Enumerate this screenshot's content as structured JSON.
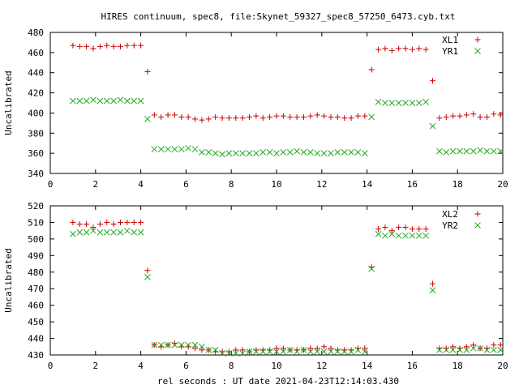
{
  "figure": {
    "title": "HIRES continuum, spec8, file:Skynet_59327_spec8_57250_6473.cyb.txt",
    "xlabel": "rel seconds : UT date 2021-04-23T12:14:03.430"
  },
  "chart_data": [
    {
      "type": "scatter",
      "ylabel": "Uncalibrated",
      "xlim": [
        0,
        20
      ],
      "ylim": [
        340,
        480
      ],
      "xticks": [
        "0",
        "2",
        "4",
        "6",
        "8",
        "10",
        "12",
        "14",
        "16",
        "18",
        "20"
      ],
      "yticks": [
        "340",
        "360",
        "380",
        "400",
        "420",
        "440",
        "460",
        "480"
      ],
      "legend_position": "top-right",
      "grid": false,
      "series": [
        {
          "name": "XL1",
          "marker": "plus",
          "color": "#cc0000",
          "points": [
            [
              1.0,
              467
            ],
            [
              1.3,
              466
            ],
            [
              1.6,
              466
            ],
            [
              1.9,
              464
            ],
            [
              2.2,
              466
            ],
            [
              2.5,
              467
            ],
            [
              2.8,
              466
            ],
            [
              3.1,
              466
            ],
            [
              3.4,
              467
            ],
            [
              3.7,
              467
            ],
            [
              4.0,
              467
            ],
            [
              4.3,
              441
            ],
            [
              4.6,
              398
            ],
            [
              4.9,
              396
            ],
            [
              5.2,
              398
            ],
            [
              5.5,
              398
            ],
            [
              5.8,
              396
            ],
            [
              6.1,
              396
            ],
            [
              6.4,
              394
            ],
            [
              6.7,
              393
            ],
            [
              7.0,
              394
            ],
            [
              7.3,
              396
            ],
            [
              7.6,
              395
            ],
            [
              7.9,
              395
            ],
            [
              8.2,
              395
            ],
            [
              8.5,
              395
            ],
            [
              8.8,
              396
            ],
            [
              9.1,
              397
            ],
            [
              9.4,
              395
            ],
            [
              9.7,
              396
            ],
            [
              10.0,
              397
            ],
            [
              10.3,
              397
            ],
            [
              10.6,
              396
            ],
            [
              10.9,
              396
            ],
            [
              11.2,
              396
            ],
            [
              11.5,
              397
            ],
            [
              11.8,
              398
            ],
            [
              12.1,
              397
            ],
            [
              12.4,
              396
            ],
            [
              12.7,
              396
            ],
            [
              13.0,
              395
            ],
            [
              13.3,
              395
            ],
            [
              13.6,
              397
            ],
            [
              13.9,
              397
            ],
            [
              14.2,
              443
            ],
            [
              14.5,
              463
            ],
            [
              14.8,
              464
            ],
            [
              15.1,
              462
            ],
            [
              15.4,
              464
            ],
            [
              15.7,
              464
            ],
            [
              16.0,
              463
            ],
            [
              16.3,
              464
            ],
            [
              16.6,
              463
            ],
            [
              16.9,
              432
            ],
            [
              17.2,
              395
            ],
            [
              17.5,
              396
            ],
            [
              17.8,
              397
            ],
            [
              18.1,
              397
            ],
            [
              18.4,
              398
            ],
            [
              18.7,
              399
            ],
            [
              19.0,
              396
            ],
            [
              19.3,
              396
            ],
            [
              19.6,
              399
            ],
            [
              19.9,
              398
            ]
          ]
        },
        {
          "name": "YR1",
          "marker": "cross",
          "color": "#22aa22",
          "points": [
            [
              1.0,
              412
            ],
            [
              1.3,
              412
            ],
            [
              1.6,
              412
            ],
            [
              1.9,
              413
            ],
            [
              2.2,
              412
            ],
            [
              2.5,
              412
            ],
            [
              2.8,
              412
            ],
            [
              3.1,
              413
            ],
            [
              3.4,
              412
            ],
            [
              3.7,
              412
            ],
            [
              4.0,
              412
            ],
            [
              4.3,
              394
            ],
            [
              4.6,
              364
            ],
            [
              4.9,
              364
            ],
            [
              5.2,
              364
            ],
            [
              5.5,
              364
            ],
            [
              5.8,
              364
            ],
            [
              6.1,
              365
            ],
            [
              6.4,
              364
            ],
            [
              6.7,
              361
            ],
            [
              7.0,
              361
            ],
            [
              7.3,
              360
            ],
            [
              7.6,
              359
            ],
            [
              7.9,
              360
            ],
            [
              8.2,
              360
            ],
            [
              8.5,
              360
            ],
            [
              8.8,
              360
            ],
            [
              9.1,
              360
            ],
            [
              9.4,
              361
            ],
            [
              9.7,
              361
            ],
            [
              10.0,
              360
            ],
            [
              10.3,
              361
            ],
            [
              10.6,
              361
            ],
            [
              10.9,
              362
            ],
            [
              11.2,
              361
            ],
            [
              11.5,
              361
            ],
            [
              11.8,
              360
            ],
            [
              12.1,
              360
            ],
            [
              12.4,
              360
            ],
            [
              12.7,
              361
            ],
            [
              13.0,
              361
            ],
            [
              13.3,
              361
            ],
            [
              13.6,
              361
            ],
            [
              13.9,
              360
            ],
            [
              14.2,
              396
            ],
            [
              14.5,
              411
            ],
            [
              14.8,
              410
            ],
            [
              15.1,
              410
            ],
            [
              15.4,
              410
            ],
            [
              15.7,
              410
            ],
            [
              16.0,
              410
            ],
            [
              16.3,
              410
            ],
            [
              16.6,
              411
            ],
            [
              16.9,
              387
            ],
            [
              17.2,
              362
            ],
            [
              17.5,
              361
            ],
            [
              17.8,
              362
            ],
            [
              18.1,
              362
            ],
            [
              18.4,
              362
            ],
            [
              18.7,
              362
            ],
            [
              19.0,
              363
            ],
            [
              19.3,
              362
            ],
            [
              19.6,
              362
            ],
            [
              19.9,
              362
            ]
          ]
        }
      ]
    },
    {
      "type": "scatter",
      "ylabel": "Uncalibrated",
      "xlim": [
        0,
        20
      ],
      "ylim": [
        430,
        520
      ],
      "xticks": [
        "0",
        "2",
        "4",
        "6",
        "8",
        "10",
        "12",
        "14",
        "16",
        "18",
        "20"
      ],
      "yticks": [
        "430",
        "440",
        "450",
        "460",
        "470",
        "480",
        "490",
        "500",
        "510",
        "520"
      ],
      "legend_position": "top-right",
      "grid": false,
      "series": [
        {
          "name": "XL2",
          "marker": "plus",
          "color": "#cc0000",
          "points": [
            [
              1.0,
              510
            ],
            [
              1.3,
              509
            ],
            [
              1.6,
              509
            ],
            [
              1.9,
              507
            ],
            [
              2.2,
              509
            ],
            [
              2.5,
              510
            ],
            [
              2.8,
              509
            ],
            [
              3.1,
              510
            ],
            [
              3.4,
              510
            ],
            [
              3.7,
              510
            ],
            [
              4.0,
              510
            ],
            [
              4.3,
              481
            ],
            [
              4.6,
              436
            ],
            [
              4.9,
              435
            ],
            [
              5.2,
              436
            ],
            [
              5.5,
              437
            ],
            [
              5.8,
              435
            ],
            [
              6.1,
              435
            ],
            [
              6.4,
              434
            ],
            [
              6.7,
              433
            ],
            [
              7.0,
              433
            ],
            [
              7.3,
              432
            ],
            [
              7.6,
              432
            ],
            [
              7.9,
              432
            ],
            [
              8.2,
              433
            ],
            [
              8.5,
              433
            ],
            [
              8.8,
              432
            ],
            [
              9.1,
              433
            ],
            [
              9.4,
              433
            ],
            [
              9.7,
              433
            ],
            [
              10.0,
              434
            ],
            [
              10.3,
              434
            ],
            [
              10.6,
              433
            ],
            [
              10.9,
              433
            ],
            [
              11.2,
              433
            ],
            [
              11.5,
              434
            ],
            [
              11.8,
              434
            ],
            [
              12.1,
              435
            ],
            [
              12.4,
              434
            ],
            [
              12.7,
              433
            ],
            [
              13.0,
              433
            ],
            [
              13.3,
              433
            ],
            [
              13.6,
              434
            ],
            [
              13.9,
              434
            ],
            [
              14.2,
              483
            ],
            [
              14.5,
              506
            ],
            [
              14.8,
              507
            ],
            [
              15.1,
              505
            ],
            [
              15.4,
              507
            ],
            [
              15.7,
              507
            ],
            [
              16.0,
              506
            ],
            [
              16.3,
              506
            ],
            [
              16.6,
              506
            ],
            [
              16.9,
              473
            ],
            [
              17.2,
              434
            ],
            [
              17.5,
              434
            ],
            [
              17.8,
              435
            ],
            [
              18.1,
              434
            ],
            [
              18.4,
              435
            ],
            [
              18.7,
              436
            ],
            [
              19.0,
              434
            ],
            [
              19.3,
              434
            ],
            [
              19.6,
              436
            ],
            [
              19.9,
              436
            ]
          ]
        },
        {
          "name": "YR2",
          "marker": "cross",
          "color": "#22aa22",
          "points": [
            [
              1.0,
              503
            ],
            [
              1.3,
              504
            ],
            [
              1.6,
              504
            ],
            [
              1.9,
              505
            ],
            [
              2.2,
              504
            ],
            [
              2.5,
              504
            ],
            [
              2.8,
              504
            ],
            [
              3.1,
              504
            ],
            [
              3.4,
              505
            ],
            [
              3.7,
              504
            ],
            [
              4.0,
              504
            ],
            [
              4.3,
              477
            ],
            [
              4.6,
              436
            ],
            [
              4.9,
              436
            ],
            [
              5.2,
              436
            ],
            [
              5.5,
              436
            ],
            [
              5.8,
              436
            ],
            [
              6.1,
              436
            ],
            [
              6.4,
              436
            ],
            [
              6.7,
              435
            ],
            [
              7.0,
              433
            ],
            [
              7.3,
              433
            ],
            [
              7.6,
              431
            ],
            [
              7.9,
              431
            ],
            [
              8.2,
              431
            ],
            [
              8.5,
              431
            ],
            [
              8.8,
              432
            ],
            [
              9.1,
              432
            ],
            [
              9.4,
              432
            ],
            [
              9.7,
              432
            ],
            [
              10.0,
              432
            ],
            [
              10.3,
              432
            ],
            [
              10.6,
              433
            ],
            [
              10.9,
              432
            ],
            [
              11.2,
              433
            ],
            [
              11.5,
              432
            ],
            [
              11.8,
              432
            ],
            [
              12.1,
              432
            ],
            [
              12.4,
              432
            ],
            [
              12.7,
              432
            ],
            [
              13.0,
              432
            ],
            [
              13.3,
              432
            ],
            [
              13.6,
              433
            ],
            [
              13.9,
              432
            ],
            [
              14.2,
              482
            ],
            [
              14.5,
              503
            ],
            [
              14.8,
              502
            ],
            [
              15.1,
              503
            ],
            [
              15.4,
              502
            ],
            [
              15.7,
              502
            ],
            [
              16.0,
              502
            ],
            [
              16.3,
              502
            ],
            [
              16.6,
              502
            ],
            [
              16.9,
              469
            ],
            [
              17.2,
              433
            ],
            [
              17.5,
              433
            ],
            [
              17.8,
              433
            ],
            [
              18.1,
              433
            ],
            [
              18.4,
              433
            ],
            [
              18.7,
              434
            ],
            [
              19.0,
              434
            ],
            [
              19.3,
              433
            ],
            [
              19.6,
              433
            ],
            [
              19.9,
              433
            ]
          ]
        }
      ]
    }
  ]
}
